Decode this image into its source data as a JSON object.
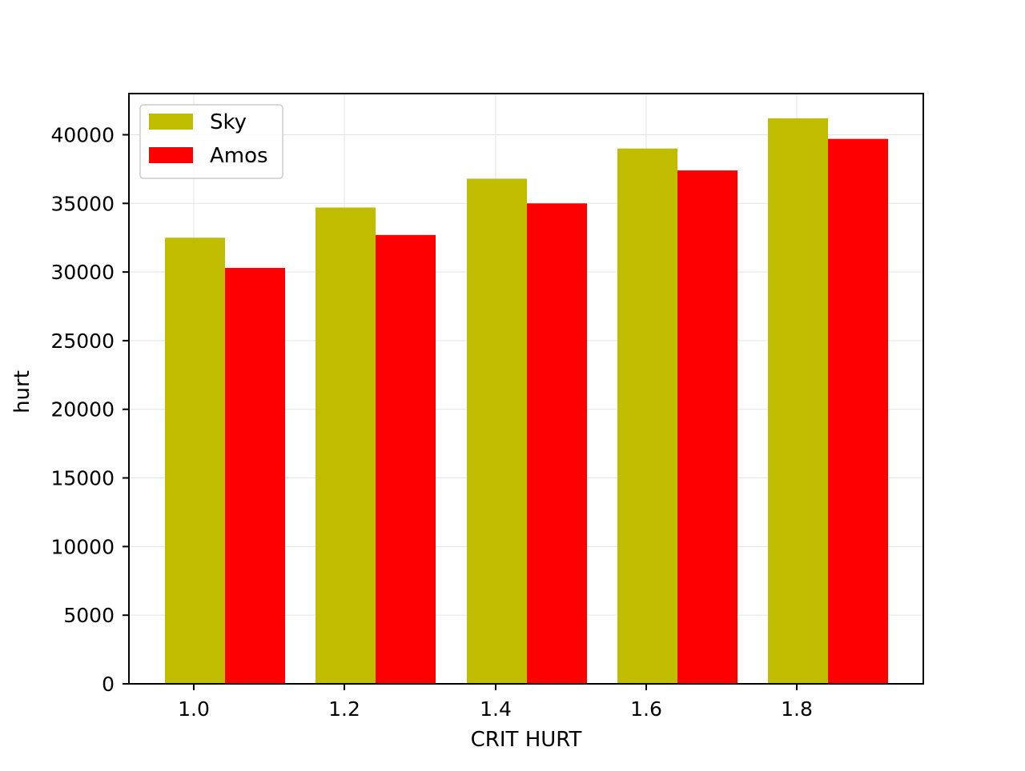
{
  "chart_data": {
    "type": "bar",
    "title": "",
    "xlabel": "CRIT HURT",
    "ylabel": "hurt",
    "categories": [
      "1.0",
      "1.2",
      "1.4",
      "1.6",
      "1.8"
    ],
    "series": [
      {
        "name": "Sky",
        "color": "#c0bc00",
        "values": [
          32500,
          34700,
          36800,
          39000,
          41200
        ]
      },
      {
        "name": "Amos",
        "color": "#ff0000",
        "values": [
          30300,
          32700,
          35000,
          37400,
          39700
        ]
      }
    ],
    "ylim": [
      0,
      43000
    ],
    "yticks": [
      0,
      5000,
      10000,
      15000,
      20000,
      25000,
      30000,
      35000,
      40000
    ],
    "ytick_labels": [
      "0",
      "5000",
      "10000",
      "15000",
      "20000",
      "25000",
      "30000",
      "35000",
      "40000"
    ],
    "grid": true,
    "legend_position": "top-left"
  }
}
